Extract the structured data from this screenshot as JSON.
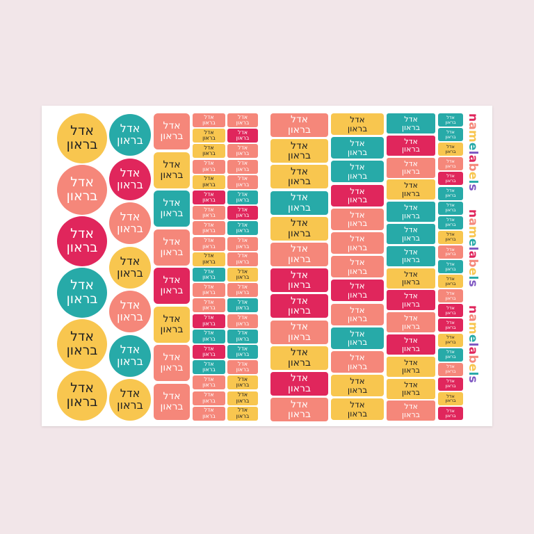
{
  "label": {
    "first_name": "אדל",
    "last_name": "בראון"
  },
  "colors": {
    "yellow": "#f8c64f",
    "salmon": "#f5877a",
    "teal": "#27aaa8",
    "pink": "#e0265c",
    "text_dark": "#222222",
    "text_light": "#ffffff"
  },
  "columns": {
    "big_circles": [
      "yellow",
      "salmon",
      "pink",
      "teal",
      "yellow",
      "yellow"
    ],
    "mid_circles": [
      "teal",
      "pink",
      "salmon",
      "yellow",
      "salmon",
      "teal",
      "yellow"
    ],
    "squares": [
      "salmon",
      "yellow",
      "teal",
      "salmon",
      "pink",
      "yellow",
      "salmon",
      "salmon"
    ],
    "small_a": [
      "salmon",
      "yellow",
      "yellow",
      "salmon",
      "yellow",
      "pink",
      "salmon",
      "salmon",
      "salmon",
      "yellow",
      "teal",
      "salmon",
      "salmon",
      "pink",
      "teal",
      "pink",
      "teal",
      "salmon",
      "salmon",
      "salmon"
    ],
    "small_b": [
      "salmon",
      "pink",
      "salmon",
      "salmon",
      "salmon",
      "teal",
      "pink",
      "teal",
      "salmon",
      "salmon",
      "yellow",
      "salmon",
      "teal",
      "salmon",
      "teal",
      "teal",
      "salmon",
      "yellow",
      "yellow",
      "yellow"
    ],
    "large_rects": [
      "salmon",
      "yellow",
      "yellow",
      "teal",
      "yellow",
      "salmon",
      "pink",
      "pink",
      "salmon",
      "yellow",
      "pink",
      "salmon"
    ],
    "med_a": [
      "yellow",
      "teal",
      "teal",
      "pink",
      "salmon",
      "salmon",
      "salmon",
      "pink",
      "salmon",
      "teal",
      "salmon",
      "yellow",
      "yellow"
    ],
    "med_b": [
      "teal",
      "pink",
      "salmon",
      "yellow",
      "teal",
      "teal",
      "teal",
      "yellow",
      "pink",
      "salmon",
      "pink",
      "yellow",
      "yellow",
      "salmon"
    ],
    "tiny": [
      "teal",
      "teal",
      "yellow",
      "salmon",
      "pink",
      "teal",
      "teal",
      "teal",
      "yellow",
      "salmon",
      "teal",
      "yellow",
      "salmon",
      "pink",
      "pink",
      "yellow",
      "teal",
      "salmon",
      "pink",
      "yellow",
      "pink"
    ]
  },
  "brand": {
    "segments": [
      {
        "text": "n",
        "color": "#e0265c"
      },
      {
        "text": "a",
        "color": "#f5877a"
      },
      {
        "text": "m",
        "color": "#f8c64f"
      },
      {
        "text": "e",
        "color": "#27aaa8"
      },
      {
        "text": "l",
        "color": "#7e57c2"
      },
      {
        "text": "a",
        "color": "#e0265c"
      },
      {
        "text": "b",
        "color": "#f5877a"
      },
      {
        "text": "e",
        "color": "#f8c64f"
      },
      {
        "text": "l",
        "color": "#27aaa8"
      },
      {
        "text": "s",
        "color": "#7e57c2"
      }
    ]
  }
}
